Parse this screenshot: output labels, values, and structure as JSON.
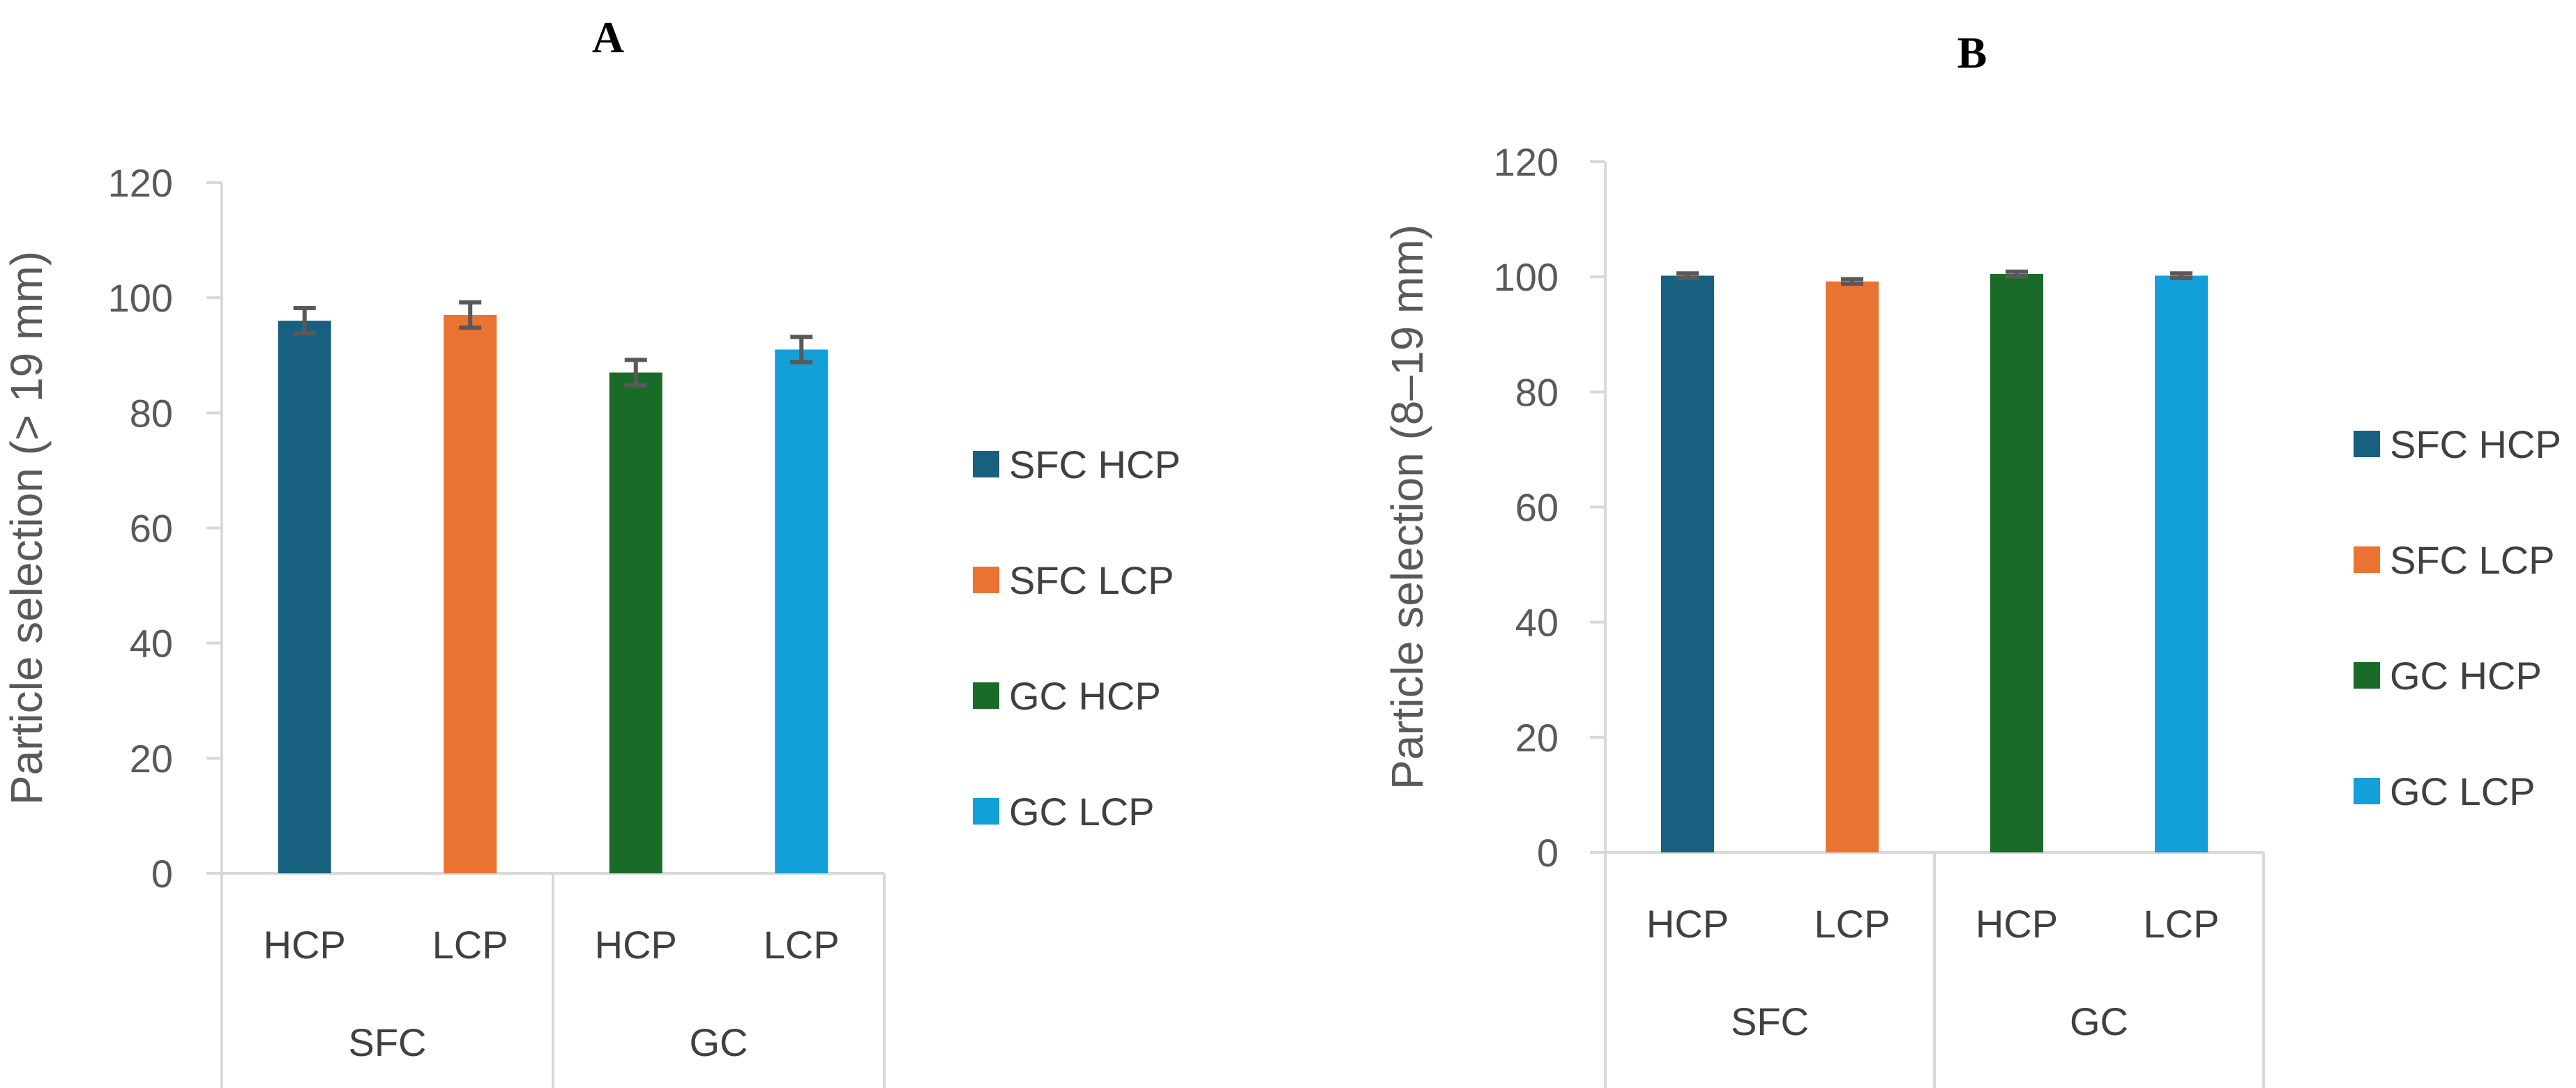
{
  "chart_data": [
    {
      "type": "bar",
      "panel": "A",
      "ylabel": "Particle selection (> 19 mm)",
      "ylim": [
        0,
        120
      ],
      "yticks": [
        0,
        20,
        40,
        60,
        80,
        100,
        120
      ],
      "groups": [
        {
          "label": "SFC",
          "categories": [
            "HCP",
            "LCP"
          ]
        },
        {
          "label": "GC",
          "categories": [
            "HCP",
            "LCP"
          ]
        }
      ],
      "bars": [
        {
          "series": "SFC HCP",
          "category": "HCP",
          "group": "SFC",
          "value": 96,
          "error": 2.2,
          "color": "#17607F"
        },
        {
          "series": "SFC LCP",
          "category": "LCP",
          "group": "SFC",
          "value": 97,
          "error": 2.2,
          "color": "#EB7332"
        },
        {
          "series": "GC HCP",
          "category": "HCP",
          "group": "GC",
          "value": 87,
          "error": 2.2,
          "color": "#1A6B28"
        },
        {
          "series": "GC LCP",
          "category": "LCP",
          "group": "GC",
          "value": 91,
          "error": 2.2,
          "color": "#139FD8"
        }
      ],
      "legend": [
        "SFC HCP",
        "SFC LCP",
        "GC HCP",
        "GC LCP"
      ],
      "legend_position": "right",
      "grid": false
    },
    {
      "type": "bar",
      "panel": "B",
      "ylabel": "Particle selection (8–19 mm)",
      "ylim": [
        0,
        120
      ],
      "yticks": [
        0,
        20,
        40,
        60,
        80,
        100,
        120
      ],
      "groups": [
        {
          "label": "SFC",
          "categories": [
            "HCP",
            "LCP"
          ]
        },
        {
          "label": "GC",
          "categories": [
            "HCP",
            "LCP"
          ]
        }
      ],
      "bars": [
        {
          "series": "SFC HCP",
          "category": "HCP",
          "group": "SFC",
          "value": 100.2,
          "error": 0.4,
          "color": "#17607F"
        },
        {
          "series": "SFC LCP",
          "category": "LCP",
          "group": "SFC",
          "value": 99.2,
          "error": 0.4,
          "color": "#EB7332"
        },
        {
          "series": "GC HCP",
          "category": "HCP",
          "group": "GC",
          "value": 100.5,
          "error": 0.4,
          "color": "#1A6B28"
        },
        {
          "series": "GC LCP",
          "category": "LCP",
          "group": "GC",
          "value": 100.2,
          "error": 0.4,
          "color": "#139FD8"
        }
      ],
      "legend": [
        "SFC HCP",
        "SFC LCP",
        "GC HCP",
        "GC LCP"
      ],
      "legend_position": "right",
      "grid": false
    }
  ]
}
